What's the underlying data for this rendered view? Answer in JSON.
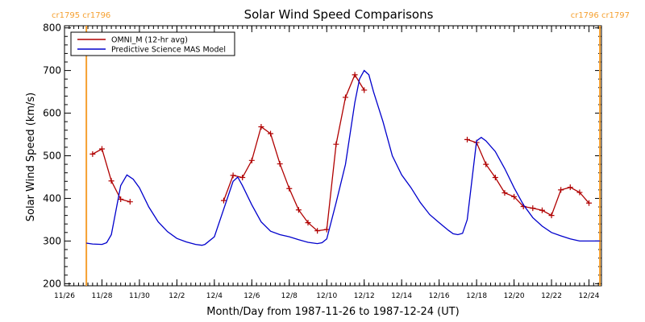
{
  "chart_data": {
    "type": "line",
    "title": "Solar Wind Speed Comparisons",
    "xlabel": "Month/Day from 1987-11-26 to 1987-12-24 (UT)",
    "ylabel": "Solar Wind Speed (km/s)",
    "xlim": [
      "1987-11-26",
      "1987-12-24T16:00"
    ],
    "ylim": [
      195,
      805
    ],
    "y_ticks": [
      200,
      300,
      400,
      500,
      600,
      700,
      800
    ],
    "x_ticks": [
      {
        "date": "1987-11-26",
        "label": "11/26"
      },
      {
        "date": "1987-11-28",
        "label": "11/28"
      },
      {
        "date": "1987-11-30",
        "label": "11/30"
      },
      {
        "date": "1987-12-02",
        "label": "12/2"
      },
      {
        "date": "1987-12-04",
        "label": "12/4"
      },
      {
        "date": "1987-12-06",
        "label": "12/6"
      },
      {
        "date": "1987-12-08",
        "label": "12/8"
      },
      {
        "date": "1987-12-10",
        "label": "12/10"
      },
      {
        "date": "1987-12-12",
        "label": "12/12"
      },
      {
        "date": "1987-12-14",
        "label": "12/14"
      },
      {
        "date": "1987-12-16",
        "label": "12/16"
      },
      {
        "date": "1987-12-18",
        "label": "12/18"
      },
      {
        "date": "1987-12-20",
        "label": "12/20"
      },
      {
        "date": "1987-12-22",
        "label": "12/22"
      },
      {
        "date": "1987-12-24",
        "label": "12/24"
      }
    ],
    "grid": false,
    "legend_position": "top-left",
    "rotation_markers": [
      {
        "date": "1987-11-27T04:00",
        "label": "cr1795 cr1796",
        "color": "#f5a030"
      },
      {
        "date": "1987-12-24T14:00",
        "label": "cr1796 cr1797",
        "color": "#f5a030"
      }
    ],
    "series": [
      {
        "name": "OMNI_M (12-hr avg)",
        "color": "#b00000",
        "marker": "+",
        "segments": [
          [
            [
              "1987-11-27T12:00",
              504
            ],
            [
              "1987-11-28T00:00",
              516
            ],
            [
              "1987-11-28T12:00",
              441
            ],
            [
              "1987-11-29T00:00",
              398
            ],
            [
              "1987-11-29T12:00",
              392
            ]
          ],
          [
            [
              "1987-12-04T12:00",
              395
            ],
            [
              "1987-12-05T00:00",
              454
            ],
            [
              "1987-12-05T12:00",
              449
            ],
            [
              "1987-12-06T00:00",
              489
            ],
            [
              "1987-12-06T12:00",
              568
            ],
            [
              "1987-12-07T00:00",
              552
            ],
            [
              "1987-12-07T12:00",
              481
            ],
            [
              "1987-12-08T00:00",
              423
            ],
            [
              "1987-12-08T12:00",
              373
            ],
            [
              "1987-12-09T00:00",
              343
            ],
            [
              "1987-12-09T12:00",
              324
            ],
            [
              "1987-12-10T00:00",
              327
            ],
            [
              "1987-12-10T12:00",
              527
            ],
            [
              "1987-12-11T00:00",
              637
            ],
            [
              "1987-12-11T12:00",
              690
            ],
            [
              "1987-12-12T00:00",
              654
            ]
          ],
          [
            [
              "1987-12-17T12:00",
              538
            ],
            [
              "1987-12-18T00:00",
              531
            ],
            [
              "1987-12-18T12:00",
              480
            ],
            [
              "1987-12-19T00:00",
              449
            ],
            [
              "1987-12-19T12:00",
              413
            ],
            [
              "1987-12-20T00:00",
              404
            ],
            [
              "1987-12-20T12:00",
              381
            ],
            [
              "1987-12-21T00:00",
              377
            ],
            [
              "1987-12-21T12:00",
              372
            ],
            [
              "1987-12-22T00:00",
              360
            ],
            [
              "1987-12-22T12:00",
              420
            ],
            [
              "1987-12-23T00:00",
              426
            ],
            [
              "1987-12-23T12:00",
              414
            ],
            [
              "1987-12-24T00:00",
              389
            ]
          ]
        ]
      },
      {
        "name": "Predictive Science MAS Model",
        "color": "#0000cc",
        "marker": "none",
        "segments": [
          [
            [
              "1987-11-27T04:00",
              295
            ],
            [
              "1987-11-27T12:00",
              293
            ],
            [
              "1987-11-28T00:00",
              292
            ],
            [
              "1987-11-28T06:00",
              296
            ],
            [
              "1987-11-28T12:00",
              315
            ],
            [
              "1987-11-29T00:00",
              430
            ],
            [
              "1987-11-29T08:00",
              455
            ],
            [
              "1987-11-29T16:00",
              445
            ],
            [
              "1987-11-30T00:00",
              425
            ],
            [
              "1987-11-30T12:00",
              380
            ],
            [
              "1987-12-01T00:00",
              345
            ],
            [
              "1987-12-01T12:00",
              322
            ],
            [
              "1987-12-02T00:00",
              306
            ],
            [
              "1987-12-02T12:00",
              298
            ],
            [
              "1987-12-03T00:00",
              292
            ],
            [
              "1987-12-03T08:00",
              290
            ],
            [
              "1987-12-03T12:00",
              292
            ],
            [
              "1987-12-04T00:00",
              310
            ],
            [
              "1987-12-04T12:00",
              375
            ],
            [
              "1987-12-05T00:00",
              440
            ],
            [
              "1987-12-05T06:00",
              450
            ],
            [
              "1987-12-05T12:00",
              430
            ],
            [
              "1987-12-06T00:00",
              385
            ],
            [
              "1987-12-06T12:00",
              345
            ],
            [
              "1987-12-07T00:00",
              323
            ],
            [
              "1987-12-07T12:00",
              315
            ],
            [
              "1987-12-08T00:00",
              310
            ],
            [
              "1987-12-08T12:00",
              303
            ],
            [
              "1987-12-09T00:00",
              297
            ],
            [
              "1987-12-09T12:00",
              294
            ],
            [
              "1987-12-09T18:00",
              296
            ],
            [
              "1987-12-10T00:00",
              305
            ],
            [
              "1987-12-10T12:00",
              390
            ],
            [
              "1987-12-11T00:00",
              480
            ],
            [
              "1987-12-11T12:00",
              625
            ],
            [
              "1987-12-11T18:00",
              680
            ],
            [
              "1987-12-12T00:00",
              700
            ],
            [
              "1987-12-12T06:00",
              690
            ],
            [
              "1987-12-12T12:00",
              650
            ],
            [
              "1987-12-13T00:00",
              580
            ],
            [
              "1987-12-13T12:00",
              500
            ],
            [
              "1987-12-14T00:00",
              455
            ],
            [
              "1987-12-14T12:00",
              425
            ],
            [
              "1987-12-15T00:00",
              390
            ],
            [
              "1987-12-15T12:00",
              362
            ],
            [
              "1987-12-16T00:00",
              343
            ],
            [
              "1987-12-16T12:00",
              325
            ],
            [
              "1987-12-16T18:00",
              317
            ],
            [
              "1987-12-17T00:00",
              315
            ],
            [
              "1987-12-17T06:00",
              318
            ],
            [
              "1987-12-17T12:00",
              350
            ],
            [
              "1987-12-18T00:00",
              535
            ],
            [
              "1987-12-18T06:00",
              543
            ],
            [
              "1987-12-18T12:00",
              535
            ],
            [
              "1987-12-19T00:00",
              510
            ],
            [
              "1987-12-19T12:00",
              470
            ],
            [
              "1987-12-20T00:00",
              425
            ],
            [
              "1987-12-20T12:00",
              385
            ],
            [
              "1987-12-21T00:00",
              355
            ],
            [
              "1987-12-21T12:00",
              335
            ],
            [
              "1987-12-22T00:00",
              320
            ],
            [
              "1987-12-22T12:00",
              312
            ],
            [
              "1987-12-23T00:00",
              305
            ],
            [
              "1987-12-23T12:00",
              300
            ],
            [
              "1987-12-24T00:00",
              300
            ],
            [
              "1987-12-24T12:00",
              300
            ],
            [
              "1987-12-24T14:00",
              300
            ]
          ]
        ]
      }
    ]
  }
}
